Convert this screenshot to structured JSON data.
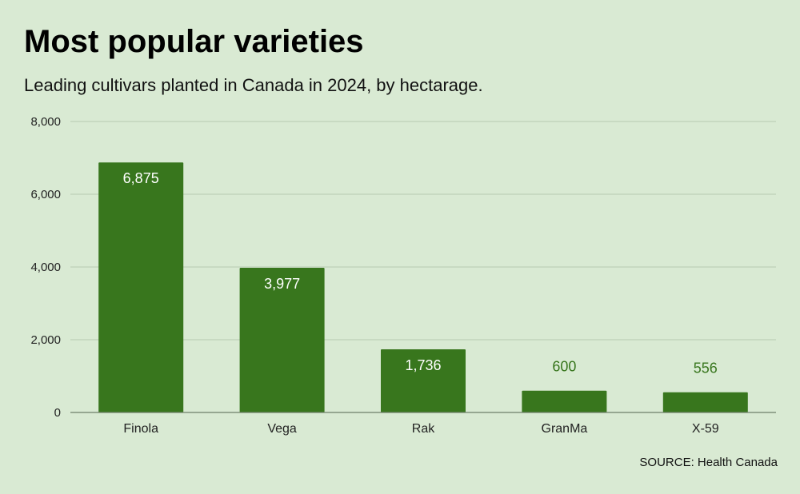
{
  "header": {
    "title": "Most popular varieties",
    "subtitle": "Leading cultivars planted in Canada in 2024, by hectarage."
  },
  "footer": {
    "source": "SOURCE: Health Canada"
  },
  "colors": {
    "background": "#d9ead3",
    "bar": "#38761d",
    "gridline": "#b7c9b0",
    "label_inside": "#ffffff",
    "label_outside": "#38761d"
  },
  "chart_data": {
    "type": "bar",
    "title": "Most popular varieties",
    "subtitle": "Leading cultivars planted in Canada in 2024, by hectarage.",
    "xlabel": "",
    "ylabel": "",
    "categories": [
      "Finola",
      "Vega",
      "Rak",
      "GranMa",
      "X-59"
    ],
    "values": [
      6875,
      3977,
      1736,
      600,
      556
    ],
    "data_labels": [
      "6,875",
      "3,977",
      "1,736",
      "600",
      "556"
    ],
    "ylim": [
      0,
      8000
    ],
    "yticks": [
      0,
      2000,
      4000,
      6000,
      8000
    ],
    "ytick_labels": [
      "0",
      "2,000",
      "4,000",
      "6,000",
      "8,000"
    ],
    "grid": true,
    "legend": "none"
  }
}
